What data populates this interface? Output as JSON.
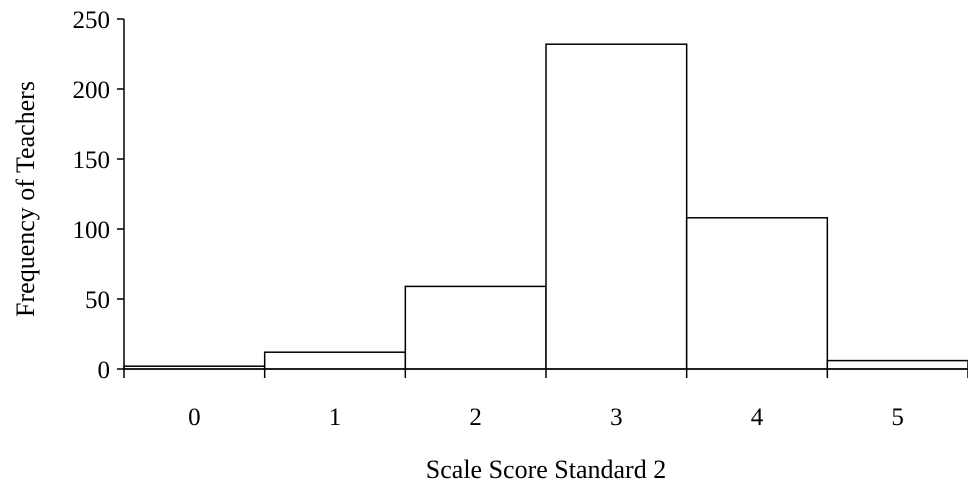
{
  "chart_data": {
    "type": "bar",
    "categories": [
      "0",
      "1",
      "2",
      "3",
      "4",
      "5"
    ],
    "values": [
      2,
      12,
      59,
      232,
      108,
      6
    ],
    "xlabel": "Scale Score Standard 2",
    "ylabel": "Frequency of Teachers",
    "ylim": [
      0,
      250
    ],
    "yticks": [
      0,
      50,
      100,
      150,
      200,
      250
    ],
    "grid": false,
    "legend": "none",
    "colors": {
      "bar_fill": "#ffffff",
      "bar_stroke": "#000000",
      "axis": "#000000"
    }
  }
}
